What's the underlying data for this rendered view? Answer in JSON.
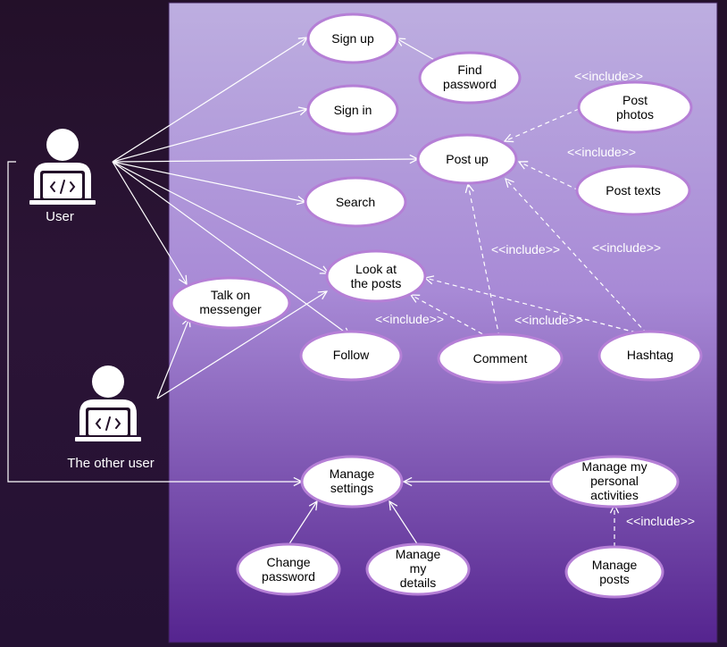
{
  "actors": {
    "user": {
      "label": "User",
      "icon": "developer-laptop-icon"
    },
    "other_user": {
      "label": "The other user",
      "icon": "developer-laptop-icon"
    }
  },
  "use_cases": {
    "sign_up": [
      "Sign up"
    ],
    "find_password": [
      "Find",
      "password"
    ],
    "sign_in": [
      "Sign in"
    ],
    "post_photos": [
      "Post",
      "photos"
    ],
    "post_up": [
      "Post up"
    ],
    "post_texts": [
      "Post texts"
    ],
    "search": [
      "Search"
    ],
    "look_at_posts": [
      "Look at",
      "the posts"
    ],
    "talk_on_messenger": [
      "Talk on",
      "messenger"
    ],
    "follow": [
      "Follow"
    ],
    "comment": [
      "Comment"
    ],
    "hashtag": [
      "Hashtag"
    ],
    "manage_settings": [
      "Manage",
      "settings"
    ],
    "manage_personal_activities": [
      "Manage my",
      "personal",
      "activities"
    ],
    "change_password": [
      "Change",
      "password"
    ],
    "manage_my_details": [
      "Manage",
      "my",
      "details"
    ],
    "manage_posts": [
      "Manage",
      "posts"
    ]
  },
  "include_label": "<<include>>",
  "colors": {
    "system_top": "#bfaee0",
    "system_bottom": "#5a2a96",
    "ellipse_fill": "#ffffff",
    "ellipse_stroke": "#b57fd6",
    "line": "#ffffff"
  }
}
